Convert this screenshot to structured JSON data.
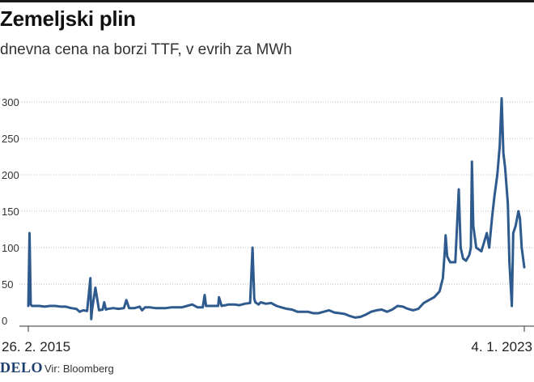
{
  "title": "Zemeljski plin",
  "subtitle": "dnevna cena na borzi TTF, v evrih za MWh",
  "footer": {
    "logo": "DELO",
    "source": "Vir: Bloomberg"
  },
  "colors": {
    "line": "#2e5a8e",
    "grid": "#bdbdbd",
    "axis": "#333333",
    "logo": "#1d3f6e"
  },
  "chart_data": {
    "type": "line",
    "title": "Zemeljski plin",
    "subtitle": "dnevna cena na borzi TTF, v evrih za MWh",
    "xlabel": "",
    "ylabel": "",
    "xlim": [
      "2015-02-26",
      "2023-01-04"
    ],
    "ylim": [
      0,
      300
    ],
    "yticks": [
      0,
      50,
      100,
      150,
      200,
      250,
      300
    ],
    "ytick_labels": [
      "0",
      "50",
      "100",
      "150",
      "200",
      "250",
      "300"
    ],
    "xtick_labels": [
      "26. 2. 2015",
      "4. 1. 2023"
    ],
    "grid": true,
    "legend": "none",
    "series": [
      {
        "name": "",
        "x": [
          "2015-02-26",
          "2015-03-05",
          "2015-03-12",
          "2015-03-19",
          "2015-04-01",
          "2015-05-01",
          "2015-06-01",
          "2015-07-01",
          "2015-08-01",
          "2015-09-01",
          "2015-10-01",
          "2015-11-01",
          "2015-12-01",
          "2015-12-20",
          "2016-01-10",
          "2016-02-01",
          "2016-02-20",
          "2016-02-25",
          "2016-03-01",
          "2016-03-20",
          "2016-04-10",
          "2016-05-01",
          "2016-05-10",
          "2016-05-20",
          "2016-06-01",
          "2016-07-01",
          "2016-08-01",
          "2016-09-01",
          "2016-09-15",
          "2016-10-01",
          "2016-11-01",
          "2016-12-01",
          "2016-12-15",
          "2017-01-01",
          "2017-02-01",
          "2017-03-01",
          "2017-04-01",
          "2017-05-01",
          "2017-06-01",
          "2017-07-01",
          "2017-08-01",
          "2017-09-01",
          "2017-10-01",
          "2017-11-01",
          "2017-12-01",
          "2017-12-12",
          "2017-12-20",
          "2018-01-10",
          "2018-02-01",
          "2018-02-28",
          "2018-03-05",
          "2018-03-20",
          "2018-04-10",
          "2018-05-01",
          "2018-06-01",
          "2018-07-01",
          "2018-08-01",
          "2018-09-01",
          "2018-09-15",
          "2018-09-25",
          "2018-10-01",
          "2018-10-20",
          "2018-11-01",
          "2018-12-01",
          "2019-01-01",
          "2019-02-01",
          "2019-03-01",
          "2019-04-01",
          "2019-05-01",
          "2019-06-01",
          "2019-07-01",
          "2019-08-01",
          "2019-09-01",
          "2019-10-01",
          "2019-11-01",
          "2019-12-01",
          "2020-01-01",
          "2020-02-01",
          "2020-03-01",
          "2020-04-01",
          "2020-05-01",
          "2020-06-01",
          "2020-07-01",
          "2020-08-01",
          "2020-09-01",
          "2020-10-01",
          "2020-11-01",
          "2020-12-01",
          "2021-01-01",
          "2021-02-01",
          "2021-03-01",
          "2021-04-01",
          "2021-05-01",
          "2021-06-01",
          "2021-07-01",
          "2021-08-01",
          "2021-09-01",
          "2021-09-20",
          "2021-10-01",
          "2021-10-06",
          "2021-10-15",
          "2021-11-01",
          "2021-12-01",
          "2021-12-21",
          "2022-01-01",
          "2022-01-15",
          "2022-02-01",
          "2022-02-20",
          "2022-03-01",
          "2022-03-07",
          "2022-03-15",
          "2022-04-01",
          "2022-05-01",
          "2022-06-01",
          "2022-06-15",
          "2022-07-01",
          "2022-07-15",
          "2022-08-01",
          "2022-08-15",
          "2022-08-26",
          "2022-09-05",
          "2022-09-15",
          "2022-10-01",
          "2022-10-10",
          "2022-10-24",
          "2022-11-01",
          "2022-11-15",
          "2022-12-01",
          "2022-12-10",
          "2022-12-20",
          "2023-01-04"
        ],
        "values": [
          20,
          120,
          22,
          20,
          20,
          20,
          19,
          20,
          20,
          19,
          19,
          17,
          16,
          12,
          14,
          13,
          58,
          2,
          15,
          45,
          14,
          15,
          25,
          15,
          16,
          17,
          16,
          17,
          28,
          17,
          17,
          19,
          14,
          18,
          18,
          17,
          17,
          17,
          18,
          18,
          18,
          20,
          22,
          18,
          18,
          35,
          20,
          20,
          20,
          20,
          32,
          20,
          21,
          22,
          22,
          21,
          23,
          24,
          100,
          30,
          25,
          22,
          25,
          23,
          24,
          20,
          18,
          16,
          15,
          12,
          12,
          12,
          10,
          10,
          12,
          14,
          11,
          10,
          9,
          6,
          4,
          5,
          8,
          12,
          14,
          15,
          12,
          15,
          20,
          19,
          16,
          14,
          16,
          24,
          28,
          32,
          40,
          58,
          95,
          117,
          88,
          80,
          80,
          180,
          100,
          85,
          82,
          90,
          100,
          218,
          130,
          100,
          95,
          120,
          100,
          140,
          170,
          200,
          240,
          305,
          230,
          210,
          160,
          80,
          20,
          120,
          130,
          150,
          140,
          100,
          73
        ]
      }
    ]
  }
}
